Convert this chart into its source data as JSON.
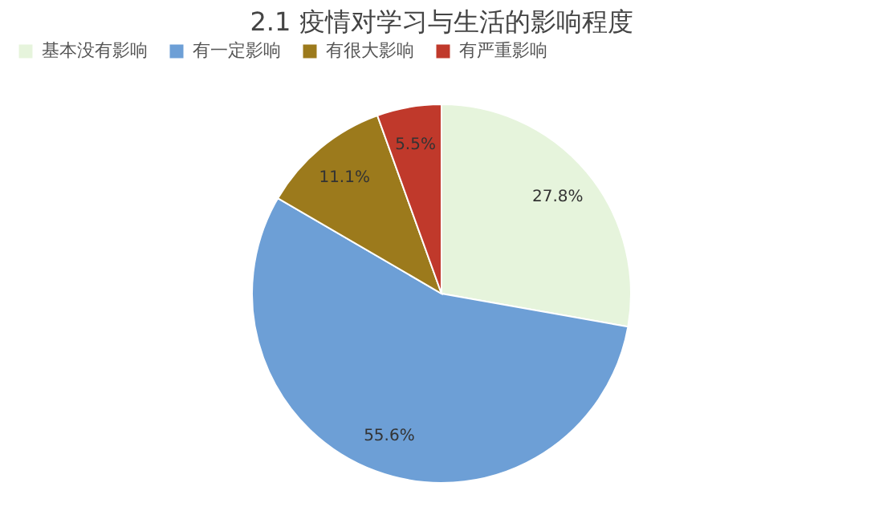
{
  "chart_data": {
    "type": "pie",
    "title": "2.1 疫情对学习与生活的影响程度",
    "categories": [
      "基本没有影响",
      "有一定影响",
      "有很大影响",
      "有严重影响"
    ],
    "values": [
      27.8,
      55.6,
      11.1,
      5.5
    ],
    "colors": [
      "#e6f4dc",
      "#6d9fd6",
      "#9c7a1c",
      "#c0392b"
    ],
    "value_labels": [
      "27.8%",
      "55.6%",
      "11.1%",
      "5.5%"
    ],
    "legend": "top"
  }
}
